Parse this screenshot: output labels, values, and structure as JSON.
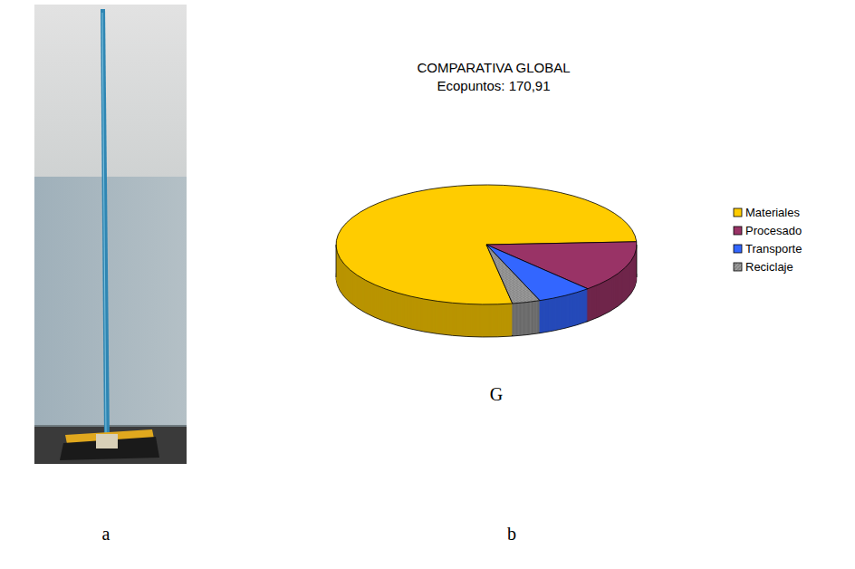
{
  "figure": {
    "panel_labels": [
      "a",
      "b"
    ]
  },
  "chart_data": {
    "type": "pie",
    "title": "COMPARATIVA GLOBAL",
    "subtitle": "Ecopuntos: 170,91",
    "categories": [
      "Materiales",
      "Procesado",
      "Transporte",
      "Reciclaje"
    ],
    "values": [
      77,
      14,
      6,
      3
    ],
    "colors": [
      "#ffcc00",
      "#993366",
      "#3366ff",
      "#808080"
    ],
    "legend": "right",
    "annotations": [
      "G"
    ]
  }
}
